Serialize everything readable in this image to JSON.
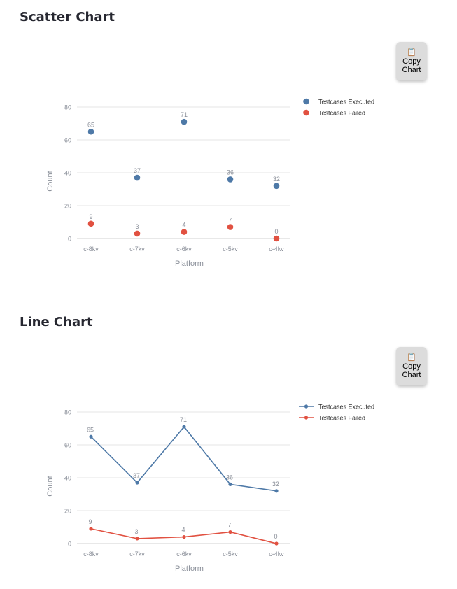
{
  "sections": [
    {
      "title": "Scatter Chart",
      "button_icon": "clipboard-icon",
      "button_label": "Copy Chart"
    },
    {
      "title": "Line Chart",
      "button_icon": "clipboard-icon",
      "button_label": "Copy Chart"
    }
  ],
  "colors": {
    "executed": "#4e79a7",
    "failed": "#e15141",
    "grid": "#e6e6e6",
    "axis_text": "#8a8f99"
  },
  "chart_data": [
    {
      "type": "scatter",
      "categories": [
        "c-8kv",
        "c-7kv",
        "c-6kv",
        "c-5kv",
        "c-4kv"
      ],
      "series": [
        {
          "name": "Testcases Executed",
          "values": [
            65,
            37,
            71,
            36,
            32
          ]
        },
        {
          "name": "Testcases Failed",
          "values": [
            9,
            3,
            4,
            7,
            0
          ]
        }
      ],
      "xlabel": "Platform",
      "ylabel": "Count",
      "ylim": [
        0,
        80
      ],
      "yticks": [
        0,
        20,
        40,
        60,
        80
      ],
      "grid": true,
      "legend": "top-right"
    },
    {
      "type": "line",
      "categories": [
        "c-8kv",
        "c-7kv",
        "c-6kv",
        "c-5kv",
        "c-4kv"
      ],
      "series": [
        {
          "name": "Testcases Executed",
          "values": [
            65,
            37,
            71,
            36,
            32
          ]
        },
        {
          "name": "Testcases Failed",
          "values": [
            9,
            3,
            4,
            7,
            0
          ]
        }
      ],
      "xlabel": "Platform",
      "ylabel": "Count",
      "ylim": [
        0,
        80
      ],
      "yticks": [
        0,
        20,
        40,
        60,
        80
      ],
      "grid": true,
      "legend": "top-right"
    }
  ]
}
